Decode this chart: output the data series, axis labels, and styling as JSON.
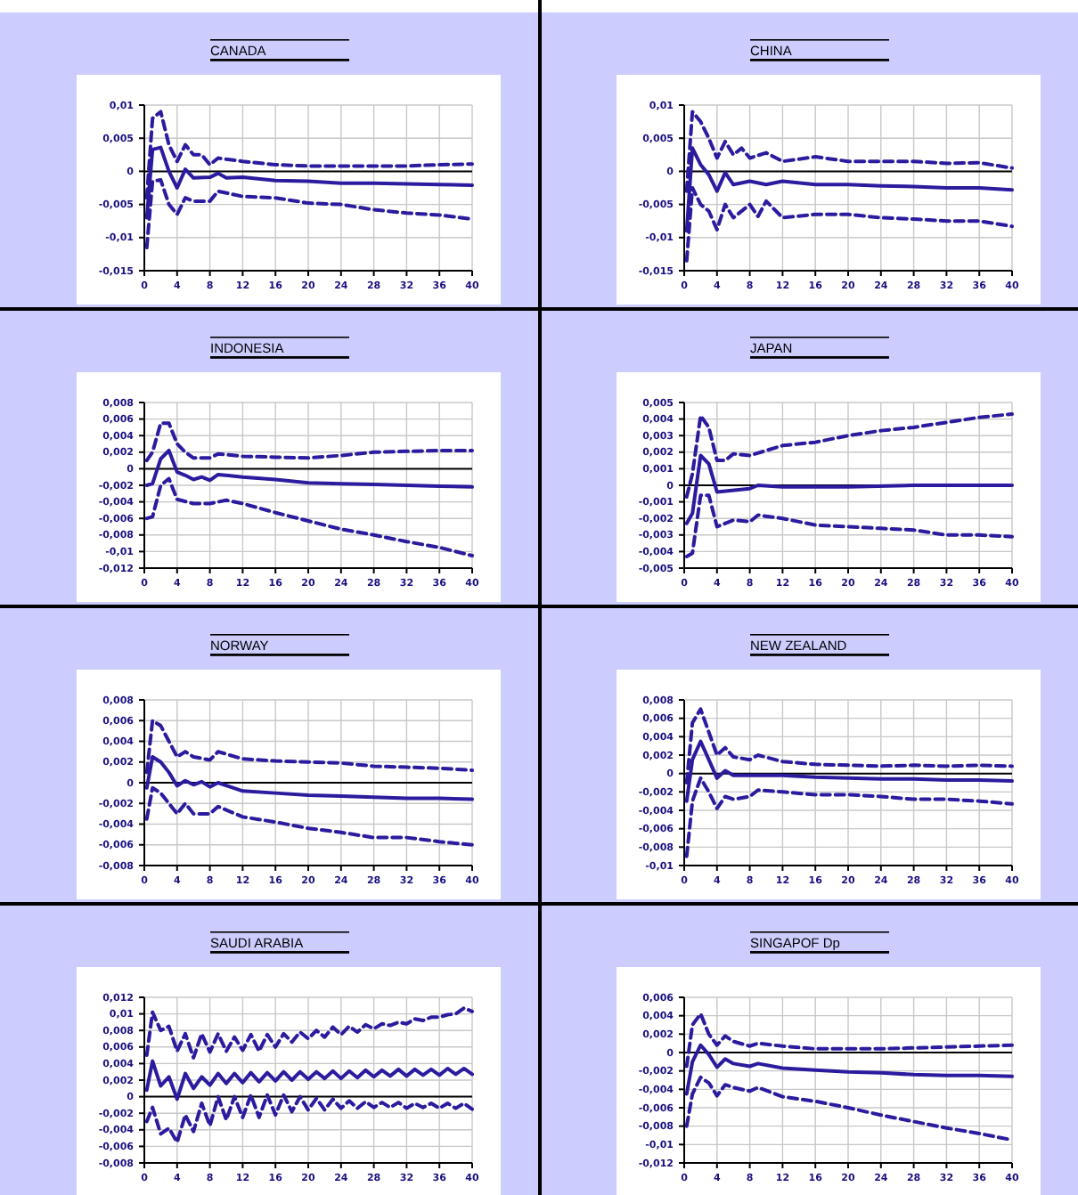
{
  "chart_data": [
    {
      "type": "line",
      "title": "CANADA",
      "xlim": [
        0,
        40
      ],
      "xticks": [
        0,
        4,
        8,
        12,
        16,
        20,
        24,
        28,
        32,
        36,
        40
      ],
      "ylim": [
        -0.015,
        0.01
      ],
      "yticks": [
        {
          "value": -0.015,
          "label": "-0,015"
        },
        {
          "value": -0.01,
          "label": "-0,01"
        },
        {
          "value": -0.005,
          "label": "-0,005"
        },
        {
          "value": 0,
          "label": "0"
        },
        {
          "value": 0.005,
          "label": "0,005"
        },
        {
          "value": 0.01,
          "label": "0,01"
        }
      ],
      "grid": true,
      "series": [
        {
          "color": "#2b1b9e",
          "line_style": "solid",
          "x": [
            0.3,
            1,
            2,
            3,
            4,
            5,
            6,
            8,
            9,
            10,
            12,
            16,
            20,
            24,
            28,
            32,
            36,
            40
          ],
          "values": [
            -0.007,
            0.0033,
            0.0036,
            0,
            -0.0025,
            0.0003,
            -0.001,
            -0.0009,
            -0.0003,
            -0.001,
            -0.0009,
            -0.0014,
            -0.0015,
            -0.0018,
            -0.0018,
            -0.0019,
            -0.002,
            -0.0021
          ]
        },
        {
          "color": "#2b1b9e",
          "line_style": "dashed",
          "x": [
            0.3,
            1,
            2,
            3,
            4,
            5,
            6,
            7,
            8,
            9,
            12,
            16,
            20,
            24,
            28,
            32,
            36,
            40
          ],
          "values": [
            -0.004,
            0.008,
            0.009,
            0.004,
            0.0015,
            0.004,
            0.0025,
            0.0025,
            0.001,
            0.002,
            0.0015,
            0.001,
            0.0008,
            0.0008,
            0.0008,
            0.0008,
            0.001,
            0.0011
          ]
        },
        {
          "color": "#2b1b9e",
          "line_style": "dashed",
          "x": [
            0.3,
            1,
            2,
            3,
            4,
            5,
            6,
            8,
            9,
            12,
            16,
            20,
            24,
            28,
            32,
            36,
            40
          ],
          "values": [
            -0.0115,
            -0.0015,
            -0.0013,
            -0.005,
            -0.0065,
            -0.004,
            -0.0045,
            -0.0045,
            -0.003,
            -0.0038,
            -0.004,
            -0.0048,
            -0.005,
            -0.0058,
            -0.0063,
            -0.0066,
            -0.0072
          ]
        }
      ]
    },
    {
      "type": "line",
      "title": "CHINA",
      "xlim": [
        0,
        40
      ],
      "xticks": [
        0,
        4,
        8,
        12,
        16,
        20,
        24,
        28,
        32,
        36,
        40
      ],
      "ylim": [
        -0.015,
        0.01
      ],
      "yticks": [
        {
          "value": -0.015,
          "label": "-0,015"
        },
        {
          "value": -0.01,
          "label": "-0,01"
        },
        {
          "value": -0.005,
          "label": "-0,005"
        },
        {
          "value": 0,
          "label": "0"
        },
        {
          "value": 0.005,
          "label": "0,005"
        },
        {
          "value": 0.01,
          "label": "0,01"
        }
      ],
      "grid": true,
      "series": [
        {
          "color": "#2b1b9e",
          "line_style": "solid",
          "x": [
            0.3,
            1,
            2,
            3,
            4,
            5,
            6,
            8,
            10,
            12,
            16,
            20,
            24,
            28,
            32,
            36,
            40
          ],
          "values": [
            -0.009,
            0.0035,
            0.001,
            -0.0005,
            -0.003,
            -0.0002,
            -0.002,
            -0.0015,
            -0.002,
            -0.0015,
            -0.002,
            -0.002,
            -0.0022,
            -0.0023,
            -0.0025,
            -0.0025,
            -0.0028
          ]
        },
        {
          "color": "#2b1b9e",
          "line_style": "dashed",
          "x": [
            0.3,
            1,
            2,
            3,
            4,
            5,
            6,
            7,
            8,
            10,
            12,
            16,
            20,
            24,
            28,
            32,
            36,
            40
          ],
          "values": [
            -0.003,
            0.009,
            0.0075,
            0.005,
            0.002,
            0.0045,
            0.0025,
            0.0035,
            0.002,
            0.0028,
            0.0015,
            0.0022,
            0.0015,
            0.0015,
            0.0015,
            0.0012,
            0.0013,
            0.0005
          ]
        },
        {
          "color": "#2b1b9e",
          "line_style": "dashed",
          "x": [
            0.3,
            1,
            2,
            3,
            4,
            5,
            6,
            8,
            9,
            10,
            12,
            16,
            20,
            24,
            28,
            32,
            36,
            40
          ],
          "values": [
            -0.0135,
            -0.0025,
            -0.005,
            -0.006,
            -0.0088,
            -0.005,
            -0.007,
            -0.005,
            -0.0068,
            -0.0045,
            -0.007,
            -0.0065,
            -0.0065,
            -0.007,
            -0.0072,
            -0.0075,
            -0.0075,
            -0.0083
          ]
        }
      ]
    },
    {
      "type": "line",
      "title": "INDONESIA",
      "xlim": [
        0,
        40
      ],
      "xticks": [
        0,
        4,
        8,
        12,
        16,
        20,
        24,
        28,
        32,
        36,
        40
      ],
      "ylim": [
        -0.012,
        0.008
      ],
      "yticks": [
        {
          "value": -0.012,
          "label": "-0,012"
        },
        {
          "value": -0.01,
          "label": "-0,01"
        },
        {
          "value": -0.008,
          "label": "-0,008"
        },
        {
          "value": -0.006,
          "label": "-0,006"
        },
        {
          "value": -0.004,
          "label": "-0,004"
        },
        {
          "value": -0.002,
          "label": "-0,002"
        },
        {
          "value": 0,
          "label": "0"
        },
        {
          "value": 0.002,
          "label": "0,002"
        },
        {
          "value": 0.004,
          "label": "0,004"
        },
        {
          "value": 0.006,
          "label": "0,006"
        },
        {
          "value": 0.008,
          "label": "0,008"
        }
      ],
      "grid": true,
      "series": [
        {
          "color": "#2b1b9e",
          "line_style": "solid",
          "x": [
            0.3,
            1,
            2,
            3,
            4,
            5,
            6,
            7,
            8,
            9,
            12,
            16,
            20,
            24,
            28,
            32,
            36,
            40
          ],
          "values": [
            -0.002,
            -0.0018,
            0.0012,
            0.0022,
            -0.0004,
            -0.0008,
            -0.0013,
            -0.001,
            -0.0014,
            -0.0007,
            -0.001,
            -0.0013,
            -0.0017,
            -0.0018,
            -0.0019,
            -0.002,
            -0.0021,
            -0.0022
          ]
        },
        {
          "color": "#2b1b9e",
          "line_style": "dashed",
          "x": [
            0.3,
            1,
            2,
            3,
            4,
            5,
            6,
            8,
            9,
            12,
            16,
            20,
            24,
            28,
            32,
            36,
            40
          ],
          "values": [
            0.001,
            0.002,
            0.0055,
            0.0055,
            0.003,
            0.002,
            0.0013,
            0.0013,
            0.0018,
            0.0015,
            0.0014,
            0.0013,
            0.0016,
            0.002,
            0.0021,
            0.0022,
            0.0022
          ]
        },
        {
          "color": "#2b1b9e",
          "line_style": "dashed",
          "x": [
            0.3,
            1,
            2,
            3,
            4,
            6,
            8,
            10,
            12,
            16,
            20,
            24,
            28,
            32,
            36,
            40
          ],
          "values": [
            -0.006,
            -0.0058,
            -0.002,
            -0.0012,
            -0.0037,
            -0.0042,
            -0.0042,
            -0.0038,
            -0.0042,
            -0.0053,
            -0.0063,
            -0.0073,
            -0.008,
            -0.0088,
            -0.0095,
            -0.0105
          ]
        }
      ]
    },
    {
      "type": "line",
      "title": "JAPAN",
      "xlim": [
        0,
        40
      ],
      "xticks": [
        0,
        4,
        8,
        12,
        16,
        20,
        24,
        28,
        32,
        36,
        40
      ],
      "ylim": [
        -0.005,
        0.005
      ],
      "yticks": [
        {
          "value": -0.005,
          "label": "-0,005"
        },
        {
          "value": -0.004,
          "label": "-0,004"
        },
        {
          "value": -0.003,
          "label": "-0,003"
        },
        {
          "value": -0.002,
          "label": "-0,002"
        },
        {
          "value": -0.001,
          "label": "-0,001"
        },
        {
          "value": 0,
          "label": "0"
        },
        {
          "value": 0.001,
          "label": "0,001"
        },
        {
          "value": 0.002,
          "label": "0,002"
        },
        {
          "value": 0.003,
          "label": "0,003"
        },
        {
          "value": 0.004,
          "label": "0,004"
        },
        {
          "value": 0.005,
          "label": "0,005"
        }
      ],
      "grid": true,
      "series": [
        {
          "color": "#2b1b9e",
          "line_style": "solid",
          "x": [
            0.3,
            1,
            2,
            3,
            4,
            8,
            9,
            12,
            20,
            28,
            40
          ],
          "values": [
            -0.0023,
            -0.0017,
            0.0018,
            0.0013,
            -0.0004,
            -0.0002,
            0,
            -0.0001,
            -0.0001,
            0,
            0
          ]
        },
        {
          "color": "#2b1b9e",
          "line_style": "dashed",
          "x": [
            0.3,
            1,
            2,
            3,
            4,
            5,
            6,
            8,
            12,
            16,
            20,
            24,
            28,
            32,
            36,
            40
          ],
          "values": [
            -0.0007,
            0.0007,
            0.0042,
            0.0035,
            0.0015,
            0.0015,
            0.0019,
            0.0018,
            0.0024,
            0.0026,
            0.003,
            0.0033,
            0.0035,
            0.0038,
            0.0041,
            0.0043
          ]
        },
        {
          "color": "#2b1b9e",
          "line_style": "dashed",
          "x": [
            0.3,
            1,
            2,
            3,
            4,
            6,
            8,
            9,
            12,
            16,
            20,
            24,
            28,
            32,
            36,
            40
          ],
          "values": [
            -0.0043,
            -0.0041,
            -0.0006,
            -0.0006,
            -0.0025,
            -0.0021,
            -0.0022,
            -0.0018,
            -0.002,
            -0.0024,
            -0.0025,
            -0.0026,
            -0.0027,
            -0.003,
            -0.003,
            -0.0031
          ]
        }
      ]
    },
    {
      "type": "line",
      "title": "NORWAY",
      "xlim": [
        0,
        40
      ],
      "xticks": [
        0,
        4,
        8,
        12,
        16,
        20,
        24,
        28,
        32,
        36,
        40
      ],
      "ylim": [
        -0.008,
        0.008
      ],
      "yticks": [
        {
          "value": -0.008,
          "label": "-0,008"
        },
        {
          "value": -0.006,
          "label": "-0,006"
        },
        {
          "value": -0.004,
          "label": "-0,004"
        },
        {
          "value": -0.002,
          "label": "-0,002"
        },
        {
          "value": 0,
          "label": "0"
        },
        {
          "value": 0.002,
          "label": "0,002"
        },
        {
          "value": 0.004,
          "label": "0,004"
        },
        {
          "value": 0.006,
          "label": "0,006"
        },
        {
          "value": 0.008,
          "label": "0,008"
        }
      ],
      "grid": true,
      "series": [
        {
          "color": "#2b1b9e",
          "line_style": "solid",
          "x": [
            0.3,
            1,
            2,
            3,
            4,
            5,
            6,
            7,
            8,
            9,
            12,
            16,
            20,
            24,
            28,
            32,
            36,
            40
          ],
          "values": [
            -0.0005,
            0.0025,
            0.002,
            0.001,
            -0.0003,
            0.0002,
            -0.0002,
            0.0001,
            -0.0004,
            0,
            -0.0008,
            -0.001,
            -0.0012,
            -0.0013,
            -0.0014,
            -0.0015,
            -0.0015,
            -0.0016
          ]
        },
        {
          "color": "#2b1b9e",
          "line_style": "dashed",
          "x": [
            0.3,
            1,
            2,
            3,
            4,
            5,
            6,
            8,
            9,
            12,
            16,
            20,
            24,
            28,
            32,
            36,
            40
          ],
          "values": [
            0.001,
            0.006,
            0.0055,
            0.004,
            0.0025,
            0.003,
            0.0025,
            0.0022,
            0.003,
            0.0023,
            0.0021,
            0.002,
            0.0019,
            0.0016,
            0.0015,
            0.0014,
            0.0012
          ]
        },
        {
          "color": "#2b1b9e",
          "line_style": "dashed",
          "x": [
            0.3,
            1,
            2,
            3,
            4,
            5,
            6,
            8,
            9,
            12,
            16,
            20,
            24,
            28,
            32,
            36,
            40
          ],
          "values": [
            -0.0035,
            -0.0005,
            -0.001,
            -0.002,
            -0.003,
            -0.002,
            -0.003,
            -0.003,
            -0.0023,
            -0.0033,
            -0.0038,
            -0.0044,
            -0.0048,
            -0.0053,
            -0.0053,
            -0.0057,
            -0.006
          ]
        }
      ]
    },
    {
      "type": "line",
      "title": "NEW ZEALAND",
      "xlim": [
        0,
        40
      ],
      "xticks": [
        0,
        4,
        8,
        12,
        16,
        20,
        24,
        28,
        32,
        36,
        40
      ],
      "ylim": [
        -0.01,
        0.008
      ],
      "yticks": [
        {
          "value": -0.01,
          "label": "-0,01"
        },
        {
          "value": -0.008,
          "label": "-0,008"
        },
        {
          "value": -0.006,
          "label": "-0,006"
        },
        {
          "value": -0.004,
          "label": "-0,004"
        },
        {
          "value": -0.002,
          "label": "-0,002"
        },
        {
          "value": 0,
          "label": "0"
        },
        {
          "value": 0.002,
          "label": "0,002"
        },
        {
          "value": 0.004,
          "label": "0,004"
        },
        {
          "value": 0.006,
          "label": "0,006"
        },
        {
          "value": 0.008,
          "label": "0,008"
        }
      ],
      "grid": true,
      "series": [
        {
          "color": "#2b1b9e",
          "line_style": "solid",
          "x": [
            0.3,
            1,
            2,
            3,
            4,
            5,
            6,
            8,
            12,
            16,
            20,
            24,
            28,
            32,
            36,
            40
          ],
          "values": [
            -0.003,
            0.0015,
            0.0035,
            0.0015,
            -0.0005,
            0.0003,
            -0.0002,
            -0.0002,
            -0.0002,
            -0.0004,
            -0.0005,
            -0.0006,
            -0.0006,
            -0.0007,
            -0.0007,
            -0.0008
          ]
        },
        {
          "color": "#2b1b9e",
          "line_style": "dashed",
          "x": [
            0.3,
            1,
            2,
            3,
            4,
            5,
            6,
            8,
            9,
            12,
            16,
            20,
            24,
            28,
            32,
            36,
            40
          ],
          "values": [
            -0.001,
            0.0055,
            0.007,
            0.0045,
            0.002,
            0.0028,
            0.0018,
            0.0015,
            0.002,
            0.0013,
            0.001,
            0.0009,
            0.0008,
            0.0009,
            0.0008,
            0.0009,
            0.0008
          ]
        },
        {
          "color": "#2b1b9e",
          "line_style": "dashed",
          "x": [
            0.3,
            1,
            2,
            3,
            4,
            5,
            6,
            8,
            9,
            12,
            16,
            20,
            24,
            28,
            32,
            36,
            40
          ],
          "values": [
            -0.009,
            -0.003,
            -0.0005,
            -0.002,
            -0.0038,
            -0.0025,
            -0.0028,
            -0.0025,
            -0.0018,
            -0.002,
            -0.0023,
            -0.0023,
            -0.0025,
            -0.0028,
            -0.0028,
            -0.003,
            -0.0033
          ]
        }
      ]
    },
    {
      "type": "line",
      "title": "SAUDI ARABIA",
      "xlim": [
        0,
        40
      ],
      "xticks": [
        0,
        4,
        8,
        12,
        16,
        20,
        24,
        28,
        32,
        36,
        40
      ],
      "ylim": [
        -0.008,
        0.012
      ],
      "yticks": [
        {
          "value": -0.008,
          "label": "-0,008"
        },
        {
          "value": -0.006,
          "label": "-0,006"
        },
        {
          "value": -0.004,
          "label": "-0,004"
        },
        {
          "value": -0.002,
          "label": "-0,002"
        },
        {
          "value": 0,
          "label": "0"
        },
        {
          "value": 0.002,
          "label": "0,002"
        },
        {
          "value": 0.004,
          "label": "0,004"
        },
        {
          "value": 0.006,
          "label": "0,006"
        },
        {
          "value": 0.008,
          "label": "0,008"
        },
        {
          "value": 0.01,
          "label": "0,01"
        },
        {
          "value": 0.012,
          "label": "0,012"
        }
      ],
      "grid": true,
      "series": [
        {
          "color": "#2b1b9e",
          "line_style": "solid",
          "x": [
            0.3,
            1,
            2,
            3,
            4,
            5,
            6,
            7,
            8,
            9,
            10,
            11,
            12,
            13,
            14,
            15,
            16,
            17,
            18,
            19,
            20,
            21,
            22,
            23,
            24,
            25,
            26,
            27,
            28,
            29,
            30,
            31,
            32,
            33,
            34,
            35,
            36,
            37,
            38,
            39,
            40
          ],
          "values": [
            0.0008,
            0.0043,
            0.0013,
            0.0024,
            -0.0003,
            0.0028,
            0.001,
            0.0024,
            0.0014,
            0.0028,
            0.0016,
            0.0028,
            0.0017,
            0.0029,
            0.0018,
            0.0029,
            0.0019,
            0.003,
            0.002,
            0.003,
            0.0021,
            0.003,
            0.0022,
            0.0031,
            0.0022,
            0.0031,
            0.0023,
            0.0032,
            0.0024,
            0.0032,
            0.0025,
            0.0033,
            0.0025,
            0.0033,
            0.0026,
            0.0033,
            0.0026,
            0.0034,
            0.0027,
            0.0034,
            0.0027
          ]
        },
        {
          "color": "#2b1b9e",
          "line_style": "dashed",
          "x": [
            0.3,
            1,
            2,
            3,
            4,
            5,
            6,
            7,
            8,
            9,
            10,
            11,
            12,
            13,
            14,
            15,
            16,
            17,
            18,
            19,
            20,
            21,
            22,
            23,
            24,
            25,
            26,
            27,
            28,
            29,
            30,
            31,
            32,
            33,
            34,
            35,
            36,
            37,
            38,
            39,
            40
          ],
          "values": [
            0.005,
            0.0102,
            0.008,
            0.0085,
            0.0055,
            0.0076,
            0.0047,
            0.0076,
            0.0054,
            0.0076,
            0.0055,
            0.0072,
            0.0056,
            0.0075,
            0.0055,
            0.0075,
            0.006,
            0.0076,
            0.0066,
            0.0078,
            0.007,
            0.008,
            0.0072,
            0.0084,
            0.0075,
            0.0085,
            0.0078,
            0.0087,
            0.0082,
            0.0088,
            0.0086,
            0.009,
            0.0088,
            0.0094,
            0.0092,
            0.0096,
            0.0096,
            0.0099,
            0.01,
            0.0107,
            0.0103
          ]
        },
        {
          "color": "#2b1b9e",
          "line_style": "dashed",
          "x": [
            0.3,
            1,
            2,
            3,
            4,
            5,
            6,
            7,
            8,
            9,
            10,
            11,
            12,
            13,
            14,
            15,
            16,
            17,
            18,
            19,
            20,
            21,
            22,
            23,
            24,
            25,
            26,
            27,
            28,
            29,
            30,
            31,
            32,
            33,
            34,
            35,
            36,
            37,
            38,
            39,
            40
          ],
          "values": [
            -0.003,
            -0.0013,
            -0.0045,
            -0.0038,
            -0.0055,
            -0.0022,
            -0.0042,
            -0.0008,
            -0.0035,
            0,
            -0.0028,
            0,
            -0.0025,
            0.0002,
            -0.0025,
            0.0002,
            -0.0022,
            0.0002,
            -0.0018,
            0,
            -0.0016,
            -0.0002,
            -0.0016,
            -0.0003,
            -0.0014,
            -0.0005,
            -0.0014,
            -0.0006,
            -0.0013,
            -0.0007,
            -0.0013,
            -0.0007,
            -0.0014,
            -0.0008,
            -0.0013,
            -0.0008,
            -0.0014,
            -0.0008,
            -0.0014,
            -0.0008,
            -0.0015
          ]
        }
      ]
    },
    {
      "type": "line",
      "title": "SINGAPOF Dp",
      "xlim": [
        0,
        40
      ],
      "xticks": [
        0,
        4,
        8,
        12,
        16,
        20,
        24,
        28,
        32,
        36,
        40
      ],
      "ylim": [
        -0.012,
        0.006
      ],
      "yticks": [
        {
          "value": -0.012,
          "label": "-0,012"
        },
        {
          "value": -0.01,
          "label": "-0,01"
        },
        {
          "value": -0.008,
          "label": "-0,008"
        },
        {
          "value": -0.006,
          "label": "-0,006"
        },
        {
          "value": -0.004,
          "label": "-0,004"
        },
        {
          "value": -0.002,
          "label": "-0,002"
        },
        {
          "value": 0,
          "label": "0"
        },
        {
          "value": 0.002,
          "label": "0,002"
        },
        {
          "value": 0.004,
          "label": "0,004"
        },
        {
          "value": 0.006,
          "label": "0,006"
        }
      ],
      "grid": true,
      "series": [
        {
          "color": "#2b1b9e",
          "line_style": "solid",
          "x": [
            0.3,
            1,
            2,
            3,
            4,
            5,
            6,
            8,
            9,
            12,
            16,
            20,
            24,
            28,
            32,
            36,
            40
          ],
          "values": [
            -0.0045,
            -0.001,
            0.0008,
            -0.0002,
            -0.0016,
            -0.0007,
            -0.0012,
            -0.0015,
            -0.0012,
            -0.0017,
            -0.0019,
            -0.0021,
            -0.0022,
            -0.0024,
            -0.0025,
            -0.0025,
            -0.0026
          ]
        },
        {
          "color": "#2b1b9e",
          "line_style": "dashed",
          "x": [
            0.3,
            1,
            2,
            3,
            4,
            5,
            6,
            8,
            9,
            12,
            16,
            20,
            24,
            28,
            32,
            36,
            40
          ],
          "values": [
            -0.0015,
            0.003,
            0.0042,
            0.002,
            0.0008,
            0.0018,
            0.0012,
            0.0007,
            0.001,
            0.0007,
            0.0004,
            0.0004,
            0.0004,
            0.0005,
            0.0006,
            0.0007,
            0.0008
          ]
        },
        {
          "color": "#2b1b9e",
          "line_style": "dashed",
          "x": [
            0.3,
            1,
            2,
            3,
            4,
            5,
            6,
            8,
            9,
            12,
            16,
            20,
            24,
            28,
            32,
            36,
            40
          ],
          "values": [
            -0.008,
            -0.0045,
            -0.0027,
            -0.0033,
            -0.0047,
            -0.0035,
            -0.0038,
            -0.0042,
            -0.0038,
            -0.0048,
            -0.0053,
            -0.006,
            -0.0068,
            -0.0075,
            -0.0082,
            -0.0088,
            -0.0095
          ]
        }
      ]
    }
  ]
}
